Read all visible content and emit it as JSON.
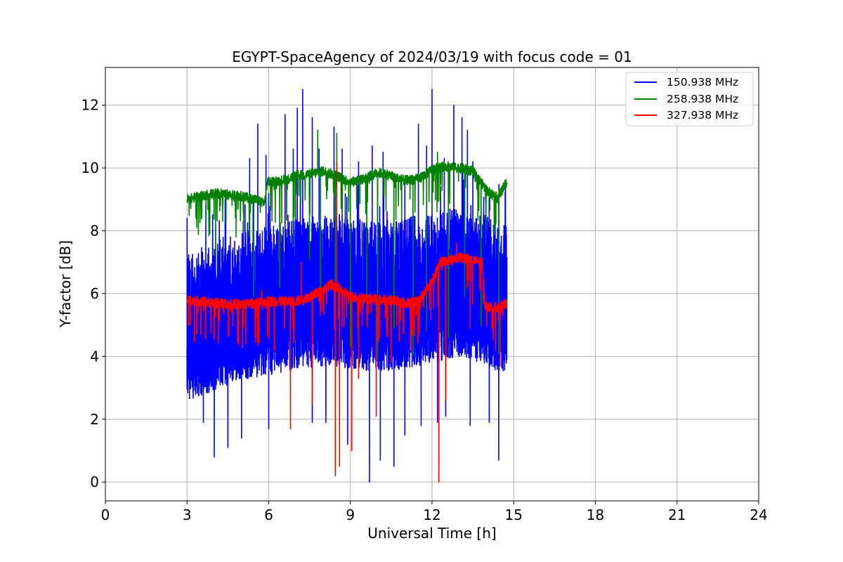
{
  "chart_data": {
    "type": "line",
    "title": "EGYPT-SpaceAgency of 2024/03/19 with focus code = 01",
    "xlabel": "Universal Time [h]",
    "ylabel": "Y-factor [dB]",
    "xlim": [
      0,
      24
    ],
    "ylim": [
      -0.6,
      13.2
    ],
    "xticks": [
      0,
      3,
      6,
      9,
      12,
      15,
      18,
      21,
      24
    ],
    "xtick_labels": [
      "0",
      "3",
      "6",
      "9",
      "12",
      "15",
      "18",
      "21",
      "24"
    ],
    "yticks": [
      0,
      2,
      4,
      6,
      8,
      10,
      12
    ],
    "ytick_labels": [
      "0",
      "2",
      "4",
      "6",
      "8",
      "10",
      "12"
    ],
    "grid": true,
    "legend_position": "top-right",
    "data_start_hour": 3.0,
    "data_end_hour": 14.75,
    "series": [
      {
        "name": "150.938 MHz",
        "color": "#0000ff",
        "style": "noisy",
        "baseline": [
          [
            3.0,
            4.2
          ],
          [
            4.0,
            4.5
          ],
          [
            5.0,
            4.8
          ],
          [
            6.0,
            5.0
          ],
          [
            7.0,
            5.2
          ],
          [
            8.0,
            5.3
          ],
          [
            9.0,
            5.2
          ],
          [
            10.0,
            5.1
          ],
          [
            11.0,
            5.2
          ],
          [
            12.0,
            5.4
          ],
          [
            13.0,
            5.6
          ],
          [
            14.0,
            5.3
          ],
          [
            14.75,
            5.0
          ]
        ],
        "noise_low": 1.6,
        "noise_high": 3.2,
        "spikes": [
          [
            3.0,
            8.4
          ],
          [
            3.5,
            6.9
          ],
          [
            4.05,
            8.15
          ],
          [
            4.4,
            9.0
          ],
          [
            5.3,
            10.3
          ],
          [
            5.6,
            11.4
          ],
          [
            5.9,
            10.4
          ],
          [
            6.6,
            11.7
          ],
          [
            6.9,
            10.6
          ],
          [
            7.05,
            11.9
          ],
          [
            7.25,
            12.5
          ],
          [
            7.6,
            11.6
          ],
          [
            7.85,
            10.6
          ],
          [
            8.4,
            11.3
          ],
          [
            8.7,
            10.6
          ],
          [
            9.3,
            10.2
          ],
          [
            9.8,
            10.7
          ],
          [
            10.2,
            10.5
          ],
          [
            11.0,
            9.6
          ],
          [
            11.5,
            11.4
          ],
          [
            11.8,
            10.7
          ],
          [
            12.0,
            12.5
          ],
          [
            12.45,
            10.3
          ],
          [
            12.8,
            12.0
          ],
          [
            13.1,
            11.6
          ],
          [
            13.3,
            11.2
          ],
          [
            13.5,
            10.2
          ],
          [
            13.9,
            7.2
          ],
          [
            14.3,
            7.0
          ],
          [
            14.65,
            6.9
          ]
        ],
        "dips": [
          [
            3.6,
            1.9
          ],
          [
            4.0,
            0.8
          ],
          [
            4.5,
            1.1
          ],
          [
            5.0,
            1.4
          ],
          [
            6.0,
            1.7
          ],
          [
            7.6,
            1.9
          ],
          [
            8.1,
            1.9
          ],
          [
            8.9,
            1.2
          ],
          [
            9.7,
            0.0
          ],
          [
            10.1,
            0.7
          ],
          [
            10.6,
            0.5
          ],
          [
            11.0,
            1.5
          ],
          [
            11.6,
            1.8
          ],
          [
            12.2,
            1.9
          ],
          [
            12.5,
            2.1
          ],
          [
            13.4,
            1.8
          ],
          [
            14.1,
            1.9
          ],
          [
            14.45,
            0.7
          ]
        ]
      },
      {
        "name": "258.938 MHz",
        "color": "#008000",
        "style": "band",
        "baseline": [
          [
            3.0,
            9.0
          ],
          [
            3.5,
            9.1
          ],
          [
            4.0,
            9.2
          ],
          [
            5.0,
            9.1
          ],
          [
            5.5,
            9.0
          ],
          [
            5.85,
            8.9
          ],
          [
            5.95,
            9.55
          ],
          [
            6.5,
            9.6
          ],
          [
            7.0,
            9.75
          ],
          [
            7.5,
            9.8
          ],
          [
            8.0,
            9.9
          ],
          [
            8.5,
            9.75
          ],
          [
            9.0,
            9.55
          ],
          [
            9.5,
            9.65
          ],
          [
            10.0,
            9.85
          ],
          [
            10.5,
            9.75
          ],
          [
            11.0,
            9.6
          ],
          [
            11.5,
            9.65
          ],
          [
            12.0,
            9.95
          ],
          [
            12.5,
            10.05
          ],
          [
            13.0,
            10.0
          ],
          [
            13.5,
            9.9
          ],
          [
            14.0,
            9.3
          ],
          [
            14.4,
            9.05
          ],
          [
            14.75,
            9.55
          ]
        ],
        "spikes": [
          [
            7.8,
            11.2
          ],
          [
            8.5,
            11.1
          ],
          [
            12.2,
            10.5
          ]
        ],
        "dips": [
          [
            3.7,
            8.2
          ],
          [
            4.05,
            7.2
          ],
          [
            4.8,
            7.8
          ],
          [
            5.45,
            5.9
          ],
          [
            6.4,
            6.2
          ],
          [
            6.9,
            7.5
          ],
          [
            7.5,
            7.1
          ],
          [
            7.9,
            6.0
          ],
          [
            8.45,
            0.2
          ],
          [
            9.0,
            4.3
          ],
          [
            9.6,
            5.2
          ],
          [
            10.0,
            3.9
          ],
          [
            10.6,
            4.9
          ],
          [
            11.3,
            4.0
          ],
          [
            11.8,
            4.8
          ],
          [
            12.6,
            4.6
          ],
          [
            13.2,
            5.9
          ],
          [
            13.8,
            5.0
          ],
          [
            14.45,
            4.1
          ]
        ]
      },
      {
        "name": "327.938 MHz",
        "color": "#ff0000",
        "style": "band",
        "baseline": [
          [
            3.0,
            5.8
          ],
          [
            4.0,
            5.7
          ],
          [
            5.0,
            5.65
          ],
          [
            6.0,
            5.75
          ],
          [
            7.0,
            5.75
          ],
          [
            7.5,
            5.9
          ],
          [
            8.0,
            6.1
          ],
          [
            8.3,
            6.3
          ],
          [
            8.7,
            6.1
          ],
          [
            9.0,
            5.9
          ],
          [
            10.0,
            5.8
          ],
          [
            10.5,
            5.8
          ],
          [
            11.0,
            5.7
          ],
          [
            11.5,
            5.75
          ],
          [
            11.7,
            6.0
          ],
          [
            12.0,
            6.4
          ],
          [
            12.3,
            7.0
          ],
          [
            13.0,
            7.15
          ],
          [
            13.85,
            7.0
          ],
          [
            13.95,
            5.6
          ],
          [
            14.5,
            5.55
          ],
          [
            14.75,
            5.7
          ]
        ],
        "spikes": [
          [
            5.75,
            6.1
          ],
          [
            7.2,
            7.0
          ],
          [
            8.5,
            10.2
          ],
          [
            12.9,
            7.6
          ]
        ],
        "dips": [
          [
            3.05,
            5.0
          ],
          [
            4.0,
            4.6
          ],
          [
            5.5,
            4.6
          ],
          [
            6.2,
            4.2
          ],
          [
            6.8,
            1.7
          ],
          [
            7.6,
            2.5
          ],
          [
            8.45,
            0.3
          ],
          [
            8.6,
            0.5
          ],
          [
            9.05,
            1.0
          ],
          [
            9.3,
            3.3
          ],
          [
            9.95,
            2.1
          ],
          [
            10.5,
            3.8
          ],
          [
            11.2,
            4.2
          ],
          [
            12.25,
            0.0
          ],
          [
            12.5,
            2.6
          ],
          [
            13.4,
            4.9
          ],
          [
            14.5,
            3.7
          ]
        ]
      }
    ]
  }
}
